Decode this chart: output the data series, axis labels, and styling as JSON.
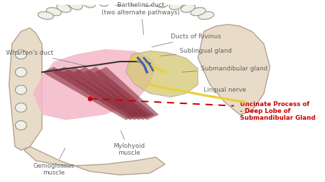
{
  "background_color": "#ffffff",
  "fig_width": 4.74,
  "fig_height": 2.66,
  "dpi": 100,
  "colors": {
    "bone": "#e8dcc8",
    "bone_outline": "#b0a090",
    "pink_tissue": "#f4b8c8",
    "gland_yellow": "#d4c870",
    "muscle_red": "#8b3040",
    "nerve_yellow": "#e8d040",
    "blue_duct": "#4060c0",
    "dashed_red": "#cc0000",
    "text_gray": "#606060",
    "text_red": "#cc0000",
    "arrow_color": "#808080",
    "tooth_white": "#f0f0e8",
    "tooth_outline": "#909080"
  },
  "labels": {
    "whartons_duct": "Wharton's duct",
    "bartholins_duct": "Bartholins duct\n(two alternate pathways)",
    "ducts_of_rivinus": "Ducts of Rivinus",
    "sublingual_gland": "Sublingual gland",
    "submandibular_gland": "Submandibular gland",
    "lingual_nerve": "Lingual nerve",
    "uncinate": "Uncinate Process of\n- Deep Lobe of\nSubmandibular Gland",
    "mylohyoid": "Mylohyoid\nmuscle",
    "genioglossus": "Genioglossus\nmuscle"
  }
}
